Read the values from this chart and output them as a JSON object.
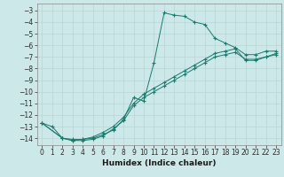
{
  "xlabel": "Humidex (Indice chaleur)",
  "background_color": "#cce8e8",
  "grid_color": "#b8d4d4",
  "line_color": "#1a7a6e",
  "xlim": [
    -0.5,
    23.5
  ],
  "ylim": [
    -14.6,
    -2.4
  ],
  "yticks": [
    -3,
    -4,
    -5,
    -6,
    -7,
    -8,
    -9,
    -10,
    -11,
    -12,
    -13,
    -14
  ],
  "xticks": [
    0,
    1,
    2,
    3,
    4,
    5,
    6,
    7,
    8,
    9,
    10,
    11,
    12,
    13,
    14,
    15,
    16,
    17,
    18,
    19,
    20,
    21,
    22,
    23
  ],
  "series1_x": [
    0,
    1,
    2,
    3,
    4,
    5,
    6,
    7,
    8,
    9,
    10,
    11,
    12,
    13,
    14,
    15,
    16,
    17,
    18,
    19,
    20,
    21,
    22,
    23
  ],
  "series1_y": [
    -12.7,
    -13.0,
    -14.0,
    -14.1,
    -14.1,
    -14.0,
    -13.7,
    -13.3,
    -12.4,
    -10.5,
    -10.8,
    -7.5,
    -3.2,
    -3.4,
    -3.5,
    -4.0,
    -4.2,
    -5.4,
    -5.8,
    -6.2,
    -6.8,
    -6.8,
    -6.5,
    -6.5
  ],
  "series2_x": [
    0,
    2,
    3,
    4,
    5,
    6,
    7,
    8,
    9,
    10,
    11,
    12,
    13,
    14,
    15,
    16,
    17,
    18,
    19,
    20,
    21,
    22,
    23
  ],
  "series2_y": [
    -12.7,
    -14.0,
    -14.2,
    -14.2,
    -14.1,
    -13.8,
    -13.2,
    -12.5,
    -11.2,
    -10.5,
    -10.0,
    -9.5,
    -9.0,
    -8.5,
    -8.0,
    -7.5,
    -7.0,
    -6.8,
    -6.6,
    -7.2,
    -7.2,
    -7.0,
    -6.8
  ],
  "series3_x": [
    0,
    2,
    3,
    4,
    5,
    6,
    7,
    8,
    9,
    10,
    11,
    12,
    13,
    14,
    15,
    16,
    17,
    18,
    19,
    20,
    21,
    22,
    23
  ],
  "series3_y": [
    -12.7,
    -14.0,
    -14.2,
    -14.1,
    -13.9,
    -13.5,
    -13.0,
    -12.2,
    -11.0,
    -10.2,
    -9.7,
    -9.2,
    -8.7,
    -8.2,
    -7.7,
    -7.2,
    -6.7,
    -6.5,
    -6.3,
    -7.3,
    -7.3,
    -7.0,
    -6.7
  ],
  "tick_fontsize": 5.5,
  "xlabel_fontsize": 6.5
}
